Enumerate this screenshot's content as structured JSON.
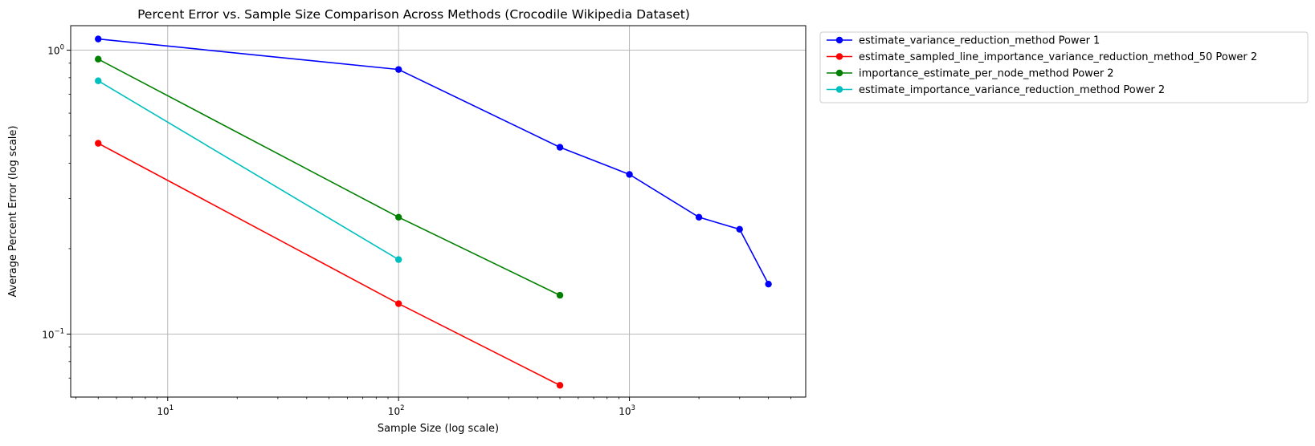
{
  "chart_data": {
    "type": "line",
    "title": "Percent Error vs. Sample Size Comparison Across Methods (Crocodile Wikipedia Dataset)",
    "xlabel": "Sample Size (log scale)",
    "ylabel": "Average Percent Error (log scale)",
    "xscale": "log",
    "yscale": "log",
    "xlim": [
      3.8,
      5800
    ],
    "ylim": [
      0.06,
      1.22
    ],
    "x_ticks": [
      {
        "value": 10,
        "base": "10",
        "exp": "1"
      },
      {
        "value": 100,
        "base": "10",
        "exp": "2"
      },
      {
        "value": 1000,
        "base": "10",
        "exp": "3"
      }
    ],
    "y_ticks": [
      {
        "value": 1,
        "base": "10",
        "exp": "0"
      },
      {
        "value": 0.1,
        "base": "10",
        "exp": "−1"
      }
    ],
    "grid": true,
    "legend_position": "outside-top-right",
    "series": [
      {
        "name": "estimate_variance_reduction_method Power 1",
        "color": "#0000ff",
        "x": [
          5,
          100,
          500,
          1000,
          2000,
          3000,
          4000
        ],
        "y": [
          1.095,
          0.855,
          0.455,
          0.365,
          0.258,
          0.234,
          0.15
        ]
      },
      {
        "name": "estimate_sampled_line_importance_variance_reduction_method_50 Power 2",
        "color": "#ff0000",
        "x": [
          5,
          100,
          500
        ],
        "y": [
          0.47,
          0.128,
          0.066
        ]
      },
      {
        "name": "importance_estimate_per_node_method Power 2",
        "color": "#008000",
        "x": [
          5,
          100,
          500
        ],
        "y": [
          0.93,
          0.258,
          0.137
        ]
      },
      {
        "name": "estimate_importance_variance_reduction_method Power 2",
        "color": "#00bfbf",
        "x": [
          5,
          100
        ],
        "y": [
          0.78,
          0.183
        ]
      }
    ]
  }
}
